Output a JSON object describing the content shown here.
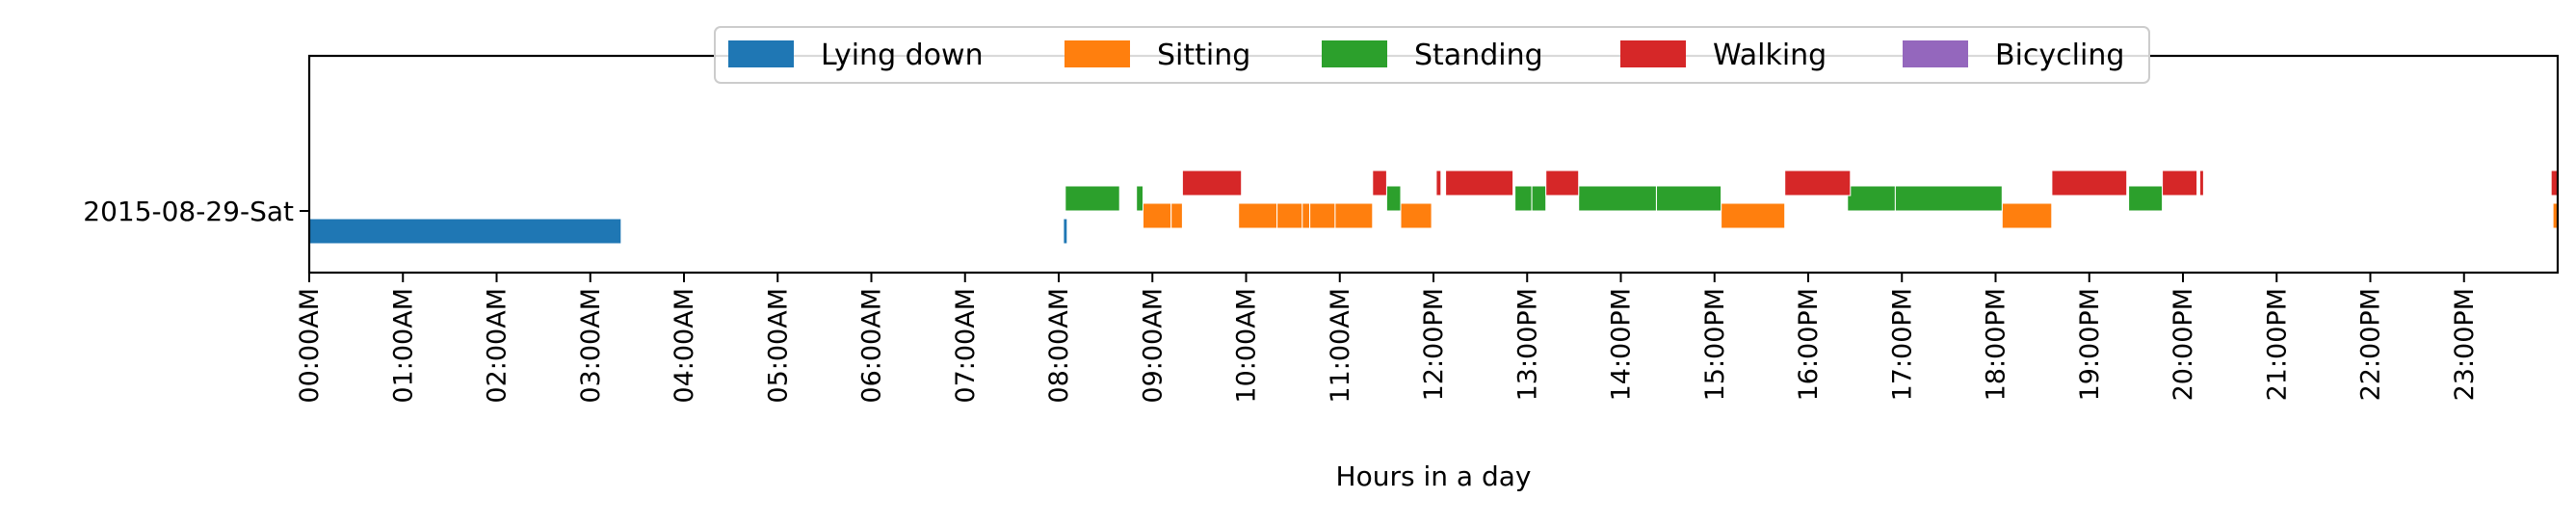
{
  "chart_data": {
    "type": "timeline",
    "xlabel": "Hours in a day",
    "xlim": [
      0,
      24
    ],
    "xticks": [
      "00:00AM",
      "01:00AM",
      "02:00AM",
      "03:00AM",
      "04:00AM",
      "05:00AM",
      "06:00AM",
      "07:00AM",
      "08:00AM",
      "09:00AM",
      "10:00AM",
      "11:00AM",
      "12:00PM",
      "13:00PM",
      "14:00PM",
      "15:00PM",
      "16:00PM",
      "17:00PM",
      "18:00PM",
      "19:00PM",
      "20:00PM",
      "21:00PM",
      "22:00PM",
      "23:00PM"
    ],
    "rows": [
      "2015-08-29-Sat"
    ],
    "grid": false,
    "legend_position": "top-center",
    "series": [
      {
        "name": "Lying down",
        "color": "#1f77b4",
        "intervals": [
          [
            0.0,
            3.33
          ],
          [
            8.05,
            8.09
          ]
        ]
      },
      {
        "name": "Sitting",
        "color": "#ff7f0e",
        "intervals": [
          [
            8.9,
            9.2
          ],
          [
            9.2,
            9.32
          ],
          [
            9.92,
            10.33
          ],
          [
            10.33,
            10.6
          ],
          [
            10.6,
            10.68
          ],
          [
            10.68,
            10.95
          ],
          [
            10.95,
            11.35
          ],
          [
            11.65,
            11.98
          ],
          [
            15.07,
            15.75
          ],
          [
            18.07,
            18.6
          ],
          [
            23.95,
            24.0
          ]
        ]
      },
      {
        "name": "Standing",
        "color": "#2ca02c",
        "intervals": [
          [
            8.07,
            8.65
          ],
          [
            8.83,
            8.9
          ],
          [
            11.5,
            11.65
          ],
          [
            12.87,
            13.05
          ],
          [
            13.05,
            13.2
          ],
          [
            13.55,
            14.38
          ],
          [
            14.38,
            15.07
          ],
          [
            16.42,
            16.93
          ],
          [
            16.93,
            18.07
          ],
          [
            19.42,
            19.78
          ]
        ]
      },
      {
        "name": "Walking",
        "color": "#d62728",
        "intervals": [
          [
            9.32,
            9.95
          ],
          [
            11.35,
            11.5
          ],
          [
            12.03,
            12.08
          ],
          [
            12.13,
            12.85
          ],
          [
            13.2,
            13.55
          ],
          [
            15.75,
            16.45
          ],
          [
            18.6,
            19.4
          ],
          [
            19.78,
            20.15
          ],
          [
            20.18,
            20.22
          ],
          [
            23.93,
            24.0
          ]
        ]
      },
      {
        "name": "Bicycling",
        "color": "#9467bd",
        "intervals": []
      }
    ]
  }
}
